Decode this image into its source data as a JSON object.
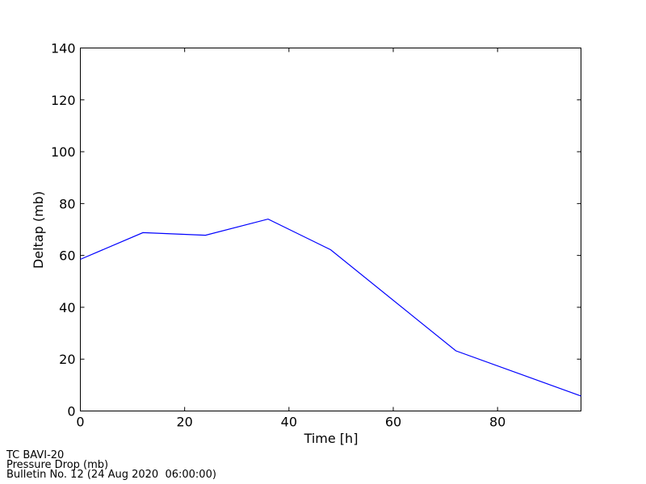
{
  "chart_data": {
    "type": "line",
    "xlabel": "Time [h]",
    "ylabel": "Deltap (mb)",
    "xlim": [
      0,
      96
    ],
    "ylim": [
      0,
      140
    ],
    "xticks": [
      0,
      20,
      40,
      60,
      80
    ],
    "yticks": [
      0,
      20,
      40,
      60,
      80,
      100,
      120,
      140
    ],
    "grid": false,
    "series": [
      {
        "color": "#0000ff",
        "x": [
          0,
          12,
          24,
          36,
          48,
          72,
          96
        ],
        "y": [
          58.5,
          68.8,
          67.8,
          74,
          62.2,
          23.2,
          5.8
        ]
      }
    ]
  },
  "caption": {
    "line1": "TC BAVI-20",
    "line2": "Pressure Drop (mb)",
    "line3": "Bulletin No. 12 (24 Aug 2020  06:00:00)"
  }
}
